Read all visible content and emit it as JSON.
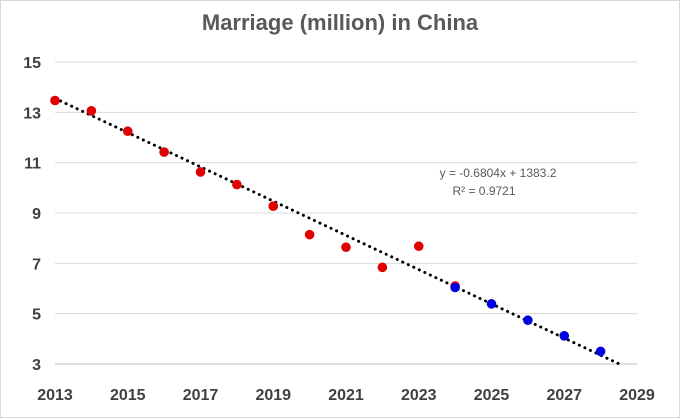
{
  "chart_data": {
    "type": "scatter",
    "title": "Marriage (million) in China",
    "xlabel": "",
    "ylabel": "",
    "xlim": [
      2013,
      2029
    ],
    "ylim": [
      3,
      15
    ],
    "x_ticks": [
      2013,
      2015,
      2017,
      2019,
      2021,
      2023,
      2025,
      2027,
      2029
    ],
    "y_ticks": [
      3,
      5,
      7,
      9,
      11,
      13,
      15
    ],
    "grid": "horizontal",
    "legend": "none",
    "series": [
      {
        "color": "#e00000",
        "x": [
          2013,
          2014,
          2015,
          2016,
          2017,
          2018,
          2019,
          2020,
          2021,
          2022,
          2023,
          2024
        ],
        "y": [
          13.47,
          13.06,
          12.25,
          11.42,
          10.63,
          10.13,
          9.27,
          8.14,
          7.64,
          6.84,
          7.68,
          6.1
        ]
      },
      {
        "color": "#0000e0",
        "x": [
          2024,
          2025,
          2026,
          2027,
          2028
        ],
        "y": [
          6.04,
          5.39,
          4.74,
          4.12,
          3.5
        ]
      }
    ],
    "trendline": {
      "style": "dotted",
      "color": "#000000",
      "slope": -0.6804,
      "intercept": 1383.2,
      "x_range": [
        2013,
        2028.5
      ],
      "equation": "y = -0.6804x + 1383.2",
      "r_squared": "R² = 0.9721"
    }
  }
}
